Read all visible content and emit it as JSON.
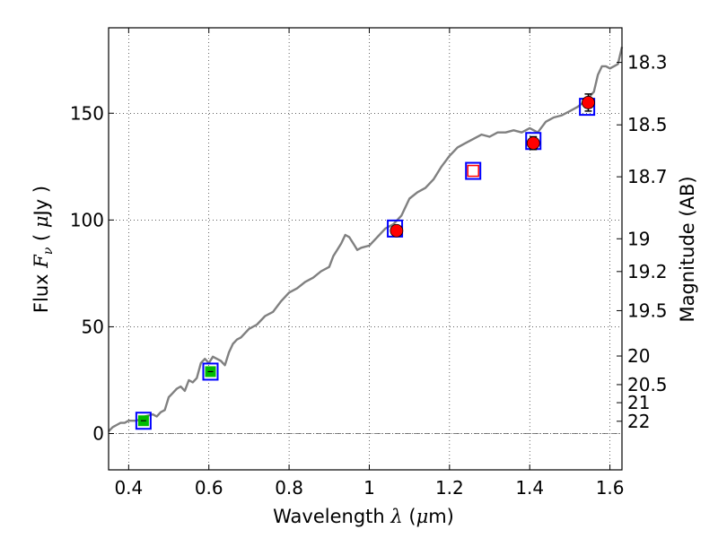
{
  "chart_data": {
    "type": "scatter",
    "xlabel": {
      "pre": "Wavelength ",
      "sym": "λ",
      "post": " (",
      "unit_sym": "μ",
      "unit_post": "m)"
    },
    "ylabel": {
      "pre": "Flux ",
      "sym": "F",
      "sub": "ν",
      "post": " ( ",
      "unit_sym": "μ",
      "unit_post": "Jy )"
    },
    "y2label": "Magnitude (AB)",
    "xlim": [
      0.35,
      1.63
    ],
    "ylim": [
      -17,
      190
    ],
    "grid": true,
    "x_ticks": [
      0.4,
      0.6,
      0.8,
      1.0,
      1.2,
      1.4,
      1.6
    ],
    "x_tick_labels": [
      "0.4",
      "0.6",
      "0.8",
      "1",
      "1.2",
      "1.4",
      "1.6"
    ],
    "y_ticks": [
      0,
      50,
      100,
      150
    ],
    "y_tick_labels": [
      "0",
      "50",
      "100",
      "150"
    ],
    "mag_ticks": [
      18.3,
      18.5,
      18.7,
      19.0,
      19.2,
      19.5,
      20.0,
      20.5,
      21.0,
      22.0
    ],
    "mag_tick_labels": [
      "18.3",
      "18.5",
      "18.7",
      "19",
      "19.2",
      "19.5",
      "20",
      "20.5",
      "21",
      "22"
    ],
    "colors": {
      "spectrum": "#808080",
      "model": "#0000ff",
      "optical": "#00bb00",
      "nir": "#ff0000"
    },
    "spectrum": {
      "x": [
        0.35,
        0.36,
        0.37,
        0.38,
        0.39,
        0.4,
        0.42,
        0.44,
        0.46,
        0.47,
        0.48,
        0.49,
        0.5,
        0.51,
        0.52,
        0.53,
        0.54,
        0.55,
        0.56,
        0.57,
        0.58,
        0.59,
        0.6,
        0.61,
        0.62,
        0.63,
        0.64,
        0.65,
        0.66,
        0.67,
        0.68,
        0.7,
        0.72,
        0.74,
        0.76,
        0.78,
        0.8,
        0.82,
        0.84,
        0.86,
        0.88,
        0.9,
        0.91,
        0.92,
        0.93,
        0.94,
        0.95,
        0.96,
        0.97,
        0.98,
        1.0,
        1.02,
        1.04,
        1.06,
        1.08,
        1.1,
        1.12,
        1.14,
        1.16,
        1.18,
        1.2,
        1.22,
        1.24,
        1.26,
        1.28,
        1.3,
        1.32,
        1.34,
        1.36,
        1.38,
        1.4,
        1.42,
        1.44,
        1.46,
        1.48,
        1.5,
        1.52,
        1.54,
        1.56,
        1.57,
        1.58,
        1.59,
        1.6,
        1.61,
        1.62,
        1.63
      ],
      "y": [
        1,
        3,
        4,
        5,
        5,
        6,
        6,
        8,
        9,
        8,
        10,
        11,
        17,
        19,
        21,
        22,
        20,
        25,
        24,
        26,
        33,
        35,
        33,
        36,
        35,
        34,
        32,
        38,
        42,
        44,
        45,
        49,
        51,
        55,
        57,
        62,
        66,
        68,
        71,
        73,
        76,
        78,
        83,
        86,
        89,
        93,
        92,
        89,
        86,
        87,
        88,
        92,
        96,
        98,
        102,
        110,
        113,
        115,
        119,
        125,
        130,
        134,
        136,
        138,
        140,
        139,
        141,
        141,
        142,
        141,
        143,
        141,
        146,
        148,
        149,
        151,
        153,
        156,
        160,
        168,
        172,
        172,
        171,
        172,
        173,
        181
      ]
    },
    "model_points": [
      {
        "x": 0.437,
        "y": 6
      },
      {
        "x": 0.604,
        "y": 29
      },
      {
        "x": 1.064,
        "y": 96
      },
      {
        "x": 1.259,
        "y": 123
      },
      {
        "x": 1.409,
        "y": 137
      },
      {
        "x": 1.543,
        "y": 153
      }
    ],
    "optical_points": [
      {
        "x": 0.437,
        "y": 6,
        "err": 0.8
      },
      {
        "x": 0.604,
        "y": 29,
        "err": 0.8
      }
    ],
    "nir_points": [
      {
        "x": 1.068,
        "y": 95,
        "err": 2
      },
      {
        "x": 1.259,
        "y": 123,
        "err": 0
      },
      {
        "x": 1.409,
        "y": 136,
        "err": 3
      },
      {
        "x": 1.546,
        "y": 155,
        "err": 4
      }
    ]
  }
}
